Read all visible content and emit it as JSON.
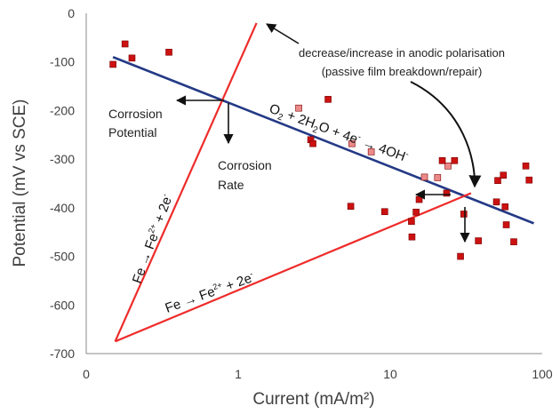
{
  "chart_data": {
    "type": "scatter",
    "xscale": "log",
    "xlim": [
      0.1,
      100
    ],
    "ylim": [
      -700,
      0
    ],
    "grid": false,
    "xlabel": "Current (mA/m²)",
    "ylabel": "Potential (mV vs SCE)",
    "x_ticks": [
      "0",
      "1",
      "10",
      "100"
    ],
    "y_ticks": [
      "0",
      "-100",
      "-200",
      "-300",
      "-400",
      "-500",
      "-600",
      "-700"
    ],
    "colors": {
      "points_dark": "#cc1111",
      "points_light": "#ec8a8a",
      "point_edge": "#7a0000",
      "anodic_lines": "#ee2b2b",
      "cathodic_line": "#243a86",
      "axis": "#8a8a8a",
      "text": "#404040"
    },
    "points": [
      {
        "x": 0.15,
        "y": -105
      },
      {
        "x": 0.18,
        "y": -63
      },
      {
        "x": 0.2,
        "y": -92
      },
      {
        "x": 0.35,
        "y": -80
      },
      {
        "x": 3.0,
        "y": -260
      },
      {
        "x": 3.1,
        "y": -268
      },
      {
        "x": 3.9,
        "y": -177
      },
      {
        "x": 5.5,
        "y": -397
      },
      {
        "x": 9.2,
        "y": -408
      },
      {
        "x": 13.8,
        "y": -428
      },
      {
        "x": 13.9,
        "y": -460
      },
      {
        "x": 14.8,
        "y": -409
      },
      {
        "x": 15.5,
        "y": -383
      },
      {
        "x": 22,
        "y": -303
      },
      {
        "x": 23.5,
        "y": -370
      },
      {
        "x": 26.5,
        "y": -303
      },
      {
        "x": 29,
        "y": -500
      },
      {
        "x": 30.5,
        "y": -413
      },
      {
        "x": 38,
        "y": -468
      },
      {
        "x": 50,
        "y": -388
      },
      {
        "x": 51,
        "y": -344
      },
      {
        "x": 55.5,
        "y": -333
      },
      {
        "x": 57,
        "y": -398
      },
      {
        "x": 58,
        "y": -435
      },
      {
        "x": 65,
        "y": -470
      },
      {
        "x": 78,
        "y": -314
      },
      {
        "x": 82,
        "y": -343
      }
    ],
    "points_light": [
      {
        "x": 2.5,
        "y": -195
      },
      {
        "x": 5.6,
        "y": -268
      },
      {
        "x": 7.5,
        "y": -285
      },
      {
        "x": 16.8,
        "y": -337
      },
      {
        "x": 20.5,
        "y": -338
      },
      {
        "x": 24,
        "y": -314
      }
    ],
    "lines": [
      {
        "name": "cathodic_O2_reduction",
        "points": [
          {
            "x": 0.15,
            "y": -90
          },
          {
            "x": 88,
            "y": -432
          }
        ]
      },
      {
        "name": "anodic_Fe_upper",
        "points": [
          {
            "x": 0.155,
            "y": -675
          },
          {
            "x": 1.32,
            "y": -20
          }
        ]
      },
      {
        "name": "anodic_Fe_lower",
        "points": [
          {
            "x": 0.155,
            "y": -675
          },
          {
            "x": 34,
            "y": -370
          }
        ]
      }
    ],
    "annotations": {
      "corrosion_potential": [
        "Corrosion",
        "Potential"
      ],
      "corrosion_rate": [
        "Corrosion",
        "Rate"
      ],
      "polarisation_line1": "decrease/increase  in anodic polarisation",
      "polarisation_line2": "(passive film breakdown/repair)",
      "reaction_o2": {
        "t1": "O",
        "s1": "2",
        "t2": " + 2H",
        "s2": "2",
        "t3": "O + 4e",
        "p1": "-",
        "t4": " → 4OH",
        "p2": "-"
      },
      "reaction_fe": {
        "t1": "Fe → Fe",
        "p1": "2+",
        "t2": " + 2e",
        "p2": "-"
      }
    }
  }
}
